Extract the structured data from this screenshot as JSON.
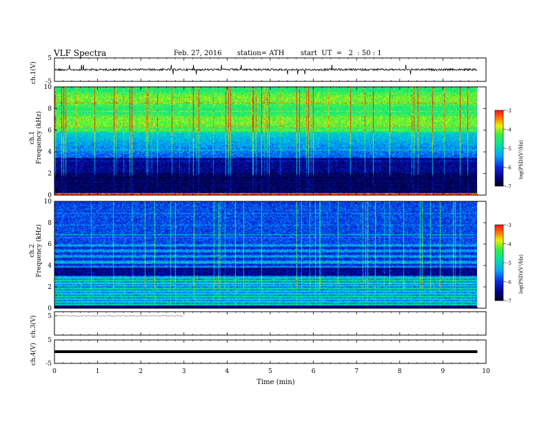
{
  "header": {
    "title": "VLF Spectra",
    "date": "Feb. 27, 2016",
    "station": "station= ATH",
    "start": "start  UT  =   2  : 50 : 1"
  },
  "panels": {
    "ch1_wave_label": "ch.1(V)",
    "ch1_spec_label": "ch.1\nFrequency (kHz)",
    "ch2_spec_label": "ch.2\nFrequency (kHz)",
    "ch3_wave_label": "ch.3(V)",
    "ch4_wave_label": "ch.4(V)"
  },
  "colorbar": {
    "label": "log(PSD)(V²/Hz)",
    "ticks": [
      "-3",
      "-4",
      "-5",
      "-6",
      "-7"
    ]
  },
  "chart_data": [
    {
      "type": "line",
      "name": "ch1-waveform",
      "ylabel": "ch.1(V)",
      "ylim": [
        -5,
        5
      ],
      "yticks": [
        5,
        -5
      ],
      "xlim": [
        0,
        10
      ],
      "baseline": 0,
      "x_end": 9.8
    },
    {
      "type": "heatmap",
      "name": "ch1-spectrogram",
      "ylabel": "ch.1 Frequency (kHz)",
      "ylim": [
        0,
        10
      ],
      "yticks": [
        0,
        2,
        4,
        6,
        8,
        10
      ],
      "xlim": [
        0,
        10
      ],
      "x_end": 9.8,
      "zlabel": "log(PSD)(V²/Hz)",
      "zlim": [
        -7,
        -3
      ]
    },
    {
      "type": "heatmap",
      "name": "ch2-spectrogram",
      "ylabel": "ch.2 Frequency (kHz)",
      "ylim": [
        0,
        10
      ],
      "yticks": [
        0,
        2,
        4,
        6,
        8,
        10
      ],
      "xlim": [
        0,
        10
      ],
      "x_end": 9.8,
      "zlabel": "log(PSD)(V²/Hz)",
      "zlim": [
        -7,
        -3
      ]
    },
    {
      "type": "line",
      "name": "ch3-waveform",
      "ylabel": "ch.3(V)",
      "yticks": [
        5
      ],
      "xlim": [
        0,
        10
      ],
      "x_end": 3.0
    },
    {
      "type": "line",
      "name": "ch4-waveform",
      "ylabel": "ch.4(V)",
      "ylim": [
        -5,
        5
      ],
      "yticks": [
        5,
        -5
      ],
      "xlim": [
        0,
        10
      ],
      "baseline": 0,
      "x_end": 9.8
    }
  ],
  "xaxis": {
    "label": "Time  (min)",
    "ticks": [
      "0",
      "1",
      "2",
      "3",
      "4",
      "5",
      "6",
      "7",
      "8",
      "9",
      "10"
    ]
  }
}
